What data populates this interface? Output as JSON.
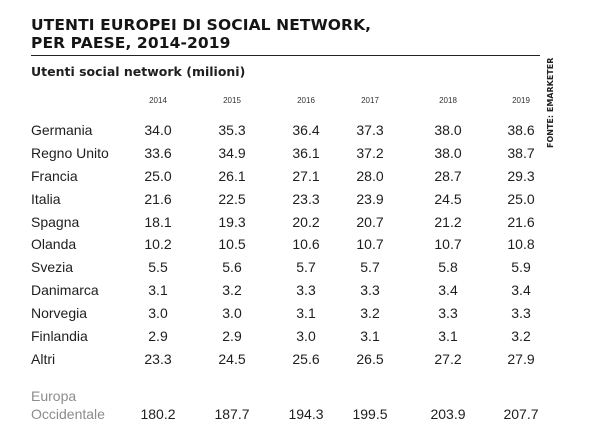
{
  "header": {
    "title_line1": "UTENTI EUROPEI DI SOCIAL NETWORK,",
    "title_line2": "PER PAESE, 2014-2019",
    "subtitle": "Utenti social network (milioni)",
    "source": "FONTE: EMARKETER"
  },
  "chart_data": {
    "type": "table",
    "title": "UTENTI EUROPEI DI SOCIAL NETWORK, PER PAESE, 2014-2019",
    "subtitle": "Utenti social network (milioni)",
    "columns": [
      "2014",
      "2015",
      "2016",
      "2017",
      "2018",
      "2019"
    ],
    "rows": [
      {
        "label": "Germania",
        "values": [
          "34.0",
          "35.3",
          "36.4",
          "37.3",
          "38.0",
          "38.6"
        ]
      },
      {
        "label": "Regno Unito",
        "values": [
          "33.6",
          "34.9",
          "36.1",
          "37.2",
          "38.0",
          "38.7"
        ]
      },
      {
        "label": "Francia",
        "values": [
          "25.0",
          "26.1",
          "27.1",
          "28.0",
          "28.7",
          "29.3"
        ]
      },
      {
        "label": "Italia",
        "values": [
          "21.6",
          "22.5",
          "23.3",
          "23.9",
          "24.5",
          "25.0"
        ]
      },
      {
        "label": "Spagna",
        "values": [
          "18.1",
          "19.3",
          "20.2",
          "20.7",
          "21.2",
          "21.6"
        ]
      },
      {
        "label": "Olanda",
        "values": [
          "10.2",
          "10.5",
          "10.6",
          "10.7",
          "10.7",
          "10.8"
        ]
      },
      {
        "label": "Svezia",
        "values": [
          "5.5",
          "5.6",
          "5.7",
          "5.7",
          "5.8",
          "5.9"
        ]
      },
      {
        "label": "Danimarca",
        "values": [
          "3.1",
          "3.2",
          "3.3",
          "3.3",
          "3.4",
          "3.4"
        ]
      },
      {
        "label": "Norvegia",
        "values": [
          "3.0",
          "3.0",
          "3.1",
          "3.2",
          "3.3",
          "3.3"
        ]
      },
      {
        "label": "Finlandia",
        "values": [
          "2.9",
          "2.9",
          "3.0",
          "3.1",
          "3.1",
          "3.2"
        ]
      },
      {
        "label": "Altri",
        "values": [
          "23.3",
          "24.5",
          "25.6",
          "26.5",
          "27.2",
          "27.9"
        ]
      }
    ],
    "total": {
      "label_line1": "Europa",
      "label_line2": "Occidentale",
      "values": [
        "180.2",
        "187.7",
        "194.3",
        "199.5",
        "203.9",
        "207.7"
      ]
    }
  }
}
